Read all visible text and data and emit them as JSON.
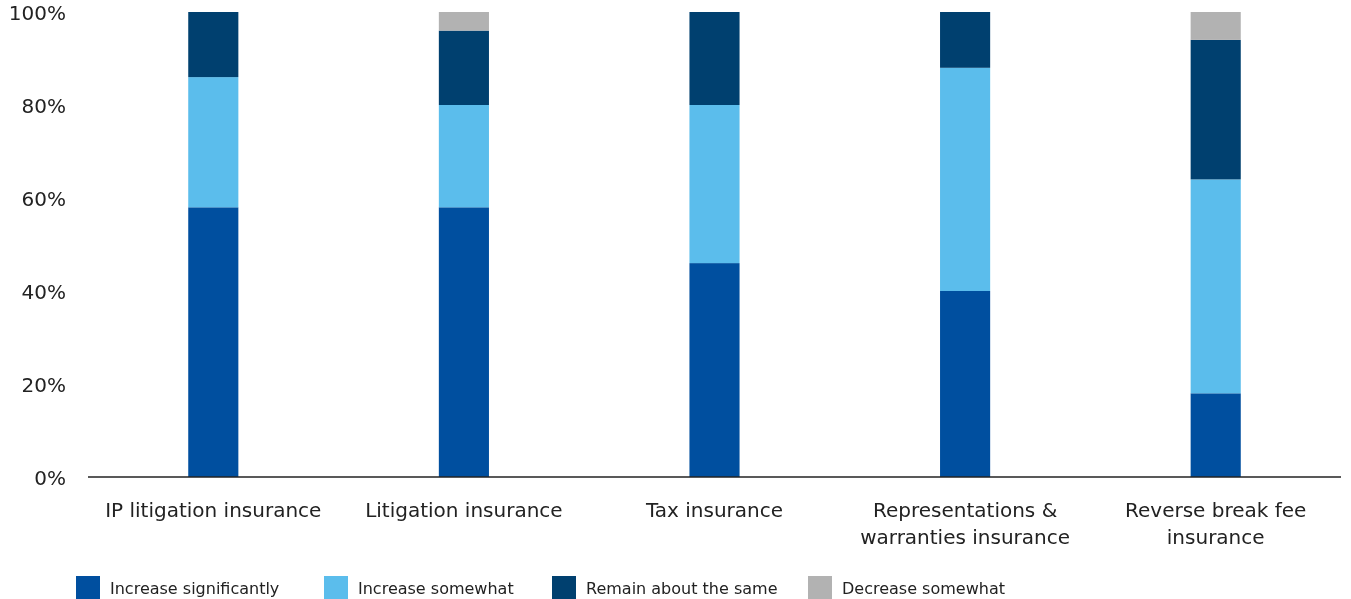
{
  "chart_data": {
    "type": "bar",
    "stacked": true,
    "categories": [
      "IP litigation insurance",
      "Litigation insurance",
      "Tax insurance",
      "Representations & warranties insurance",
      "Reverse break fee insurance"
    ],
    "series": [
      {
        "name": "Increase significantly",
        "color": "#004f9f",
        "values": [
          58,
          58,
          46,
          40,
          18
        ]
      },
      {
        "name": "Increase somewhat",
        "color": "#5bbdec",
        "values": [
          28,
          22,
          34,
          48,
          46
        ]
      },
      {
        "name": "Remain about the same",
        "color": "#00406f",
        "values": [
          14,
          16,
          20,
          12,
          30
        ]
      },
      {
        "name": "Decrease somewhat",
        "color": "#b2b2b2",
        "values": [
          0,
          4,
          0,
          0,
          6
        ]
      }
    ],
    "ylim": [
      0,
      100
    ],
    "yticks": [
      {
        "value": 0,
        "label": "0%"
      },
      {
        "value": 20,
        "label": "20%"
      },
      {
        "value": 40,
        "label": "40%"
      },
      {
        "value": 60,
        "label": "60%"
      },
      {
        "value": 80,
        "label": "80%"
      },
      {
        "value": 100,
        "label": "100%"
      }
    ],
    "grid": false,
    "legend": "bottom"
  }
}
